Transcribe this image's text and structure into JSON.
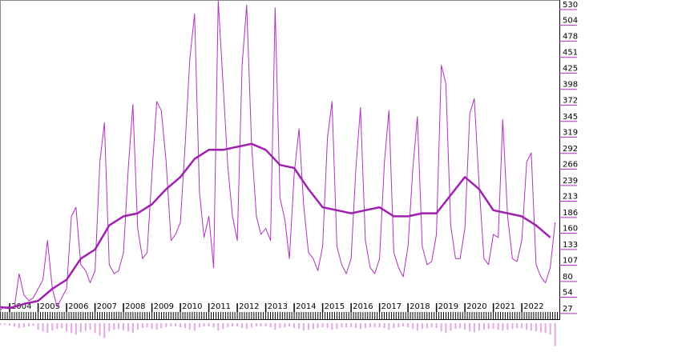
{
  "chart_data": [
    {
      "type": "line",
      "xlim": [
        2003.66,
        2023.32
      ],
      "xticks": [
        2004,
        2005,
        2006,
        2007,
        2008,
        2009,
        2010,
        2011,
        2012,
        2013,
        2014,
        2015,
        2016,
        2017,
        2018,
        2019,
        2020,
        2021,
        2022
      ],
      "ylim": [
        15,
        538
      ],
      "yticks": [
        27,
        54,
        80,
        107,
        133,
        160,
        186,
        213,
        239,
        266,
        292,
        319,
        345,
        372,
        398,
        425,
        451,
        478,
        504,
        530
      ],
      "series": [
        {
          "color": "#b030c0",
          "width": 1,
          "x": [
            2003.67,
            2003.83,
            2004,
            2004.17,
            2004.33,
            2004.5,
            2004.67,
            2004.83,
            2005,
            2005.17,
            2005.33,
            2005.5,
            2005.67,
            2005.83,
            2006,
            2006.17,
            2006.33,
            2006.5,
            2006.67,
            2006.83,
            2007,
            2007.17,
            2007.33,
            2007.5,
            2007.67,
            2007.83,
            2008,
            2008.17,
            2008.33,
            2008.5,
            2008.67,
            2008.83,
            2009,
            2009.17,
            2009.33,
            2009.5,
            2009.67,
            2009.83,
            2010,
            2010.17,
            2010.33,
            2010.5,
            2010.67,
            2010.83,
            2011,
            2011.17,
            2011.33,
            2011.5,
            2011.67,
            2011.83,
            2012,
            2012.17,
            2012.33,
            2012.5,
            2012.67,
            2012.83,
            2013,
            2013.17,
            2013.33,
            2013.5,
            2013.67,
            2013.83,
            2014,
            2014.17,
            2014.33,
            2014.5,
            2014.67,
            2014.83,
            2015,
            2015.17,
            2015.33,
            2015.5,
            2015.67,
            2015.83,
            2016,
            2016.17,
            2016.33,
            2016.5,
            2016.67,
            2016.83,
            2017,
            2017.17,
            2017.33,
            2017.5,
            2017.67,
            2017.83,
            2018,
            2018.17,
            2018.33,
            2018.5,
            2018.67,
            2018.83,
            2019,
            2019.17,
            2019.33,
            2019.5,
            2019.67,
            2019.83,
            2020,
            2020.17,
            2020.33,
            2020.5,
            2020.67,
            2020.83,
            2021,
            2021.17,
            2021.33,
            2021.5,
            2021.67,
            2021.83,
            2022,
            2022.17,
            2022.33,
            2022.5,
            2022.67,
            2022.83,
            2023,
            2023.17
          ],
          "values": [
            25,
            30,
            30,
            30,
            85,
            50,
            40,
            45,
            60,
            75,
            140,
            60,
            30,
            45,
            60,
            180,
            195,
            100,
            90,
            70,
            90,
            270,
            335,
            100,
            85,
            90,
            120,
            260,
            365,
            160,
            110,
            120,
            250,
            370,
            355,
            270,
            140,
            150,
            170,
            300,
            440,
            515,
            220,
            145,
            180,
            95,
            537,
            400,
            260,
            180,
            140,
            430,
            530,
            300,
            180,
            150,
            160,
            140,
            525,
            210,
            175,
            110,
            250,
            325,
            200,
            120,
            110,
            90,
            130,
            310,
            370,
            130,
            100,
            85,
            110,
            260,
            360,
            140,
            95,
            85,
            110,
            270,
            355,
            120,
            95,
            80,
            130,
            260,
            345,
            130,
            100,
            105,
            150,
            430,
            400,
            165,
            110,
            110,
            160,
            350,
            375,
            230,
            110,
            100,
            150,
            145,
            340,
            180,
            110,
            105,
            140,
            270,
            285,
            100,
            80,
            70,
            95,
            170
          ]
        },
        {
          "color": "#a020b0",
          "width": 2.5,
          "x": [
            2003.67,
            2004,
            2004.5,
            2005,
            2005.5,
            2006,
            2006.5,
            2007,
            2007.5,
            2008,
            2008.5,
            2009,
            2009.5,
            2010,
            2010.5,
            2011,
            2011.5,
            2012,
            2012.5,
            2013,
            2013.5,
            2014,
            2014.5,
            2015,
            2015.5,
            2016,
            2016.5,
            2017,
            2017.5,
            2018,
            2018.5,
            2019,
            2019.5,
            2020,
            2020.5,
            2021,
            2021.5,
            2022,
            2022.5,
            2023
          ],
          "values": [
            30,
            28,
            35,
            40,
            60,
            75,
            110,
            125,
            165,
            180,
            185,
            200,
            225,
            245,
            275,
            290,
            290,
            295,
            300,
            290,
            265,
            260,
            225,
            195,
            190,
            185,
            190,
            195,
            180,
            180,
            185,
            185,
            215,
            245,
            225,
            190,
            185,
            180,
            165,
            145
          ]
        }
      ]
    },
    {
      "type": "bar",
      "ylim": [
        0,
        40
      ],
      "color": "#e3a6e6",
      "values": [
        2,
        2,
        3,
        4,
        6,
        5,
        4,
        3,
        8,
        10,
        12,
        9,
        7,
        6,
        10,
        12,
        14,
        11,
        9,
        8,
        12,
        15,
        18,
        10,
        8,
        7,
        9,
        10,
        12,
        8,
        6,
        5,
        7,
        8,
        6,
        5,
        4,
        4,
        5,
        6,
        8,
        9,
        5,
        4,
        4,
        5,
        9,
        7,
        5,
        4,
        4,
        6,
        7,
        5,
        4,
        4,
        4,
        5,
        8,
        6,
        5,
        4,
        6,
        7,
        9,
        8,
        7,
        6,
        5,
        6,
        8,
        7,
        5,
        5,
        5,
        6,
        7,
        6,
        5,
        5,
        5,
        6,
        8,
        6,
        5,
        4,
        5,
        7,
        9,
        7,
        6,
        5,
        6,
        10,
        12,
        9,
        7,
        6,
        8,
        10,
        11,
        9,
        8,
        7,
        7,
        8,
        9,
        8,
        7,
        6,
        6,
        8,
        9,
        10,
        11,
        12,
        14,
        28
      ]
    }
  ]
}
